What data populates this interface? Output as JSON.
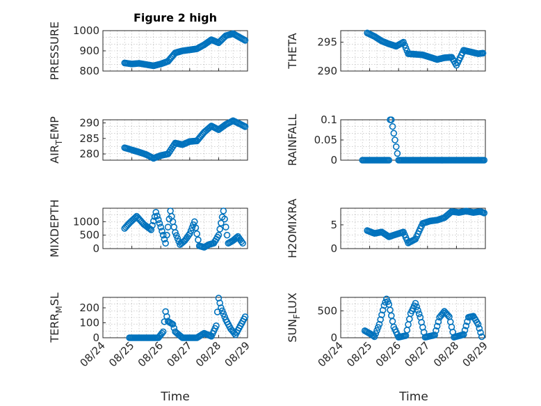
{
  "figure": {
    "title": "Figure 2 high",
    "xlabel": "Time",
    "date_ticks": [
      "08/24",
      "08/25",
      "08/26",
      "08/27",
      "08/28",
      "08/29"
    ],
    "marker_color": "#0072BD"
  },
  "chart_data": [
    {
      "type": "scatter",
      "name": "PRESSURE",
      "ylabel": "PRESSURE",
      "xlim": [
        "08/24",
        "08/29"
      ],
      "ylim": [
        800,
        1000
      ],
      "yticks": [
        "800",
        "900",
        "1000"
      ],
      "show_xticks": false,
      "grid": true,
      "x": [
        "08/24 18:00",
        "08/25 00:00",
        "08/25 06:00",
        "08/25 12:00",
        "08/25 18:00",
        "08/26 00:00",
        "08/26 06:00",
        "08/26 12:00",
        "08/26 18:00",
        "08/27 00:00",
        "08/27 06:00",
        "08/27 12:00",
        "08/27 18:00",
        "08/28 00:00",
        "08/28 06:00",
        "08/28 12:00",
        "08/28 18:00",
        "08/28 22:00"
      ],
      "y": [
        840,
        835,
        838,
        832,
        826,
        835,
        848,
        890,
        900,
        905,
        910,
        930,
        955,
        940,
        975,
        985,
        965,
        952
      ]
    },
    {
      "type": "scatter",
      "name": "THETA",
      "ylabel": "THETA",
      "xlim": [
        "08/24",
        "08/29"
      ],
      "ylim": [
        290,
        297
      ],
      "yticks": [
        "290",
        "295"
      ],
      "show_xticks": false,
      "grid": true,
      "x": [
        "08/24 22:00",
        "08/25 04:00",
        "08/25 10:00",
        "08/25 16:00",
        "08/25 22:00",
        "08/26 04:00",
        "08/26 08:00",
        "08/26 14:00",
        "08/26 20:00",
        "08/27 02:00",
        "08/27 08:00",
        "08/27 14:00",
        "08/27 20:00",
        "08/28 00:00",
        "08/28 06:00",
        "08/28 12:00",
        "08/28 18:00",
        "08/28 22:00"
      ],
      "y": [
        296.6,
        296.0,
        295.2,
        294.7,
        294.3,
        295.0,
        293.0,
        292.9,
        292.8,
        292.4,
        292.0,
        292.3,
        292.4,
        291.0,
        293.6,
        293.3,
        293.0,
        293.1
      ]
    },
    {
      "type": "scatter",
      "name": "AIR_TEMP",
      "ylabel_main": "AIR",
      "ylabel_sub": "T",
      "ylabel_tail": "EMP",
      "xlim": [
        "08/24",
        "08/29"
      ],
      "ylim": [
        278,
        291
      ],
      "yticks": [
        "280",
        "285",
        "290"
      ],
      "show_xticks": false,
      "grid": true,
      "x": [
        "08/24 18:00",
        "08/25 00:00",
        "08/25 06:00",
        "08/25 12:00",
        "08/25 18:00",
        "08/26 00:00",
        "08/26 06:00",
        "08/26 12:00",
        "08/26 18:00",
        "08/27 00:00",
        "08/27 06:00",
        "08/27 12:00",
        "08/27 18:00",
        "08/28 00:00",
        "08/28 06:00",
        "08/28 12:00",
        "08/28 18:00",
        "08/28 22:00"
      ],
      "y": [
        282.0,
        281.3,
        280.6,
        279.8,
        278.6,
        279.5,
        280.0,
        283.5,
        283.0,
        284.0,
        284.2,
        287.0,
        289.0,
        287.8,
        289.5,
        290.7,
        289.6,
        288.8
      ]
    },
    {
      "type": "scatter",
      "name": "RAINFALL",
      "ylabel": "RAINFALL",
      "xlim": [
        "08/24",
        "08/29"
      ],
      "ylim": [
        0,
        0.1
      ],
      "yticks": [
        "0",
        "0.05",
        "0.1"
      ],
      "show_xticks": false,
      "grid": true,
      "x": [
        "08/24 18:00",
        "08/25 00:00",
        "08/25 06:00",
        "08/25 12:00",
        "08/25 16:00",
        "08/25 17:00",
        "08/25 18:00",
        "08/26 00:00",
        "08/26 06:00",
        "08/26 12:00",
        "08/26 18:00",
        "08/27 00:00",
        "08/27 06:00",
        "08/27 12:00",
        "08/27 18:00",
        "08/28 00:00",
        "08/28 06:00",
        "08/28 12:00",
        "08/28 18:00",
        "08/28 23:00"
      ],
      "y": [
        0,
        0,
        0,
        0,
        0,
        0.1,
        0.1,
        0,
        0,
        0,
        0,
        0,
        0,
        0,
        0,
        0,
        0,
        0,
        0,
        0
      ]
    },
    {
      "type": "scatter",
      "name": "MIXDEPTH",
      "ylabel": "MIXDEPTH",
      "xlim": [
        "08/24",
        "08/29"
      ],
      "ylim": [
        0,
        1500
      ],
      "yticks": [
        "0",
        "500",
        "1000"
      ],
      "show_xticks": false,
      "grid": true,
      "x": [
        "08/24 18:00",
        "08/24 22:00",
        "08/25 04:00",
        "08/25 10:00",
        "08/25 16:00",
        "08/25 20:00",
        "08/26 00:00",
        "08/26 04:00",
        "08/26 08:00",
        "08/26 12:00",
        "08/26 16:00",
        "08/26 20:00",
        "08/27 00:00",
        "08/27 04:00",
        "08/27 08:00",
        "08/27 12:00",
        "08/27 16:00",
        "08/27 20:00",
        "08/28 00:00",
        "08/28 04:00",
        "08/28 08:00",
        "08/28 12:00",
        "08/28 16:00",
        "08/28 20:00"
      ],
      "y": [
        750,
        950,
        1200,
        900,
        700,
        1350,
        800,
        200,
        1400,
        600,
        150,
        300,
        550,
        1000,
        100,
        50,
        150,
        200,
        500,
        1400,
        200,
        300,
        450,
        200
      ]
    },
    {
      "type": "scatter",
      "name": "H2OMIXRA",
      "ylabel": "H2OMIXRA",
      "xlim": [
        "08/24",
        "08/29"
      ],
      "ylim": [
        0,
        8.5
      ],
      "yticks": [
        "0",
        "5"
      ],
      "show_xticks": false,
      "grid": true,
      "x": [
        "08/24 22:00",
        "08/25 04:00",
        "08/25 10:00",
        "08/25 16:00",
        "08/25 22:00",
        "08/26 04:00",
        "08/26 08:00",
        "08/26 14:00",
        "08/26 20:00",
        "08/27 02:00",
        "08/27 08:00",
        "08/27 14:00",
        "08/27 20:00",
        "08/28 02:00",
        "08/28 08:00",
        "08/28 14:00",
        "08/28 20:00",
        "08/28 23:00"
      ],
      "y": [
        3.8,
        3.2,
        3.5,
        2.5,
        3.0,
        3.5,
        1.2,
        2.0,
        5.3,
        5.8,
        6.0,
        6.5,
        7.8,
        7.6,
        7.9,
        7.6,
        7.8,
        7.5
      ]
    },
    {
      "type": "scatter",
      "name": "TERR_MSL",
      "ylabel_main": "TERR",
      "ylabel_sub": "M",
      "ylabel_tail": "SL",
      "xlim": [
        "08/24",
        "08/29"
      ],
      "ylim": [
        0,
        270
      ],
      "yticks": [
        "0",
        "100",
        "200"
      ],
      "show_xticks": true,
      "grid": true,
      "x": [
        "08/24 22:00",
        "08/25 06:00",
        "08/25 14:00",
        "08/25 22:00",
        "08/26 02:00",
        "08/26 04:00",
        "08/26 06:00",
        "08/26 08:00",
        "08/26 10:00",
        "08/26 12:00",
        "08/26 18:00",
        "08/27 00:00",
        "08/27 06:00",
        "08/27 12:00",
        "08/27 18:00",
        "08/27 22:00",
        "08/28 00:00",
        "08/28 02:00",
        "08/28 06:00",
        "08/28 10:00",
        "08/28 14:00",
        "08/28 18:00",
        "08/28 22:00"
      ],
      "y": [
        0,
        0,
        0,
        0,
        40,
        175,
        110,
        100,
        90,
        40,
        0,
        0,
        0,
        30,
        10,
        80,
        265,
        200,
        120,
        60,
        20,
        80,
        140
      ]
    },
    {
      "type": "scatter",
      "name": "SUN_FLUX",
      "ylabel_main": "SUN",
      "ylabel_sub": "F",
      "ylabel_tail": "LUX",
      "xlim": [
        "08/24",
        "08/29"
      ],
      "ylim": [
        0,
        750
      ],
      "yticks": [
        "0",
        "500"
      ],
      "show_xticks": true,
      "grid": true,
      "x": [
        "08/24 20:00",
        "08/25 00:00",
        "08/25 04:00",
        "08/25 08:00",
        "08/25 12:00",
        "08/25 14:00",
        "08/25 16:00",
        "08/25 20:00",
        "08/26 00:00",
        "08/26 06:00",
        "08/26 10:00",
        "08/26 14:00",
        "08/26 18:00",
        "08/26 22:00",
        "08/27 06:00",
        "08/27 10:00",
        "08/27 14:00",
        "08/27 18:00",
        "08/27 22:00",
        "08/28 06:00",
        "08/28 10:00",
        "08/28 14:00",
        "08/28 18:00",
        "08/28 21:00"
      ],
      "y": [
        130,
        80,
        20,
        250,
        600,
        720,
        620,
        200,
        10,
        40,
        450,
        640,
        380,
        10,
        50,
        380,
        490,
        390,
        10,
        60,
        380,
        400,
        250,
        20
      ]
    }
  ]
}
